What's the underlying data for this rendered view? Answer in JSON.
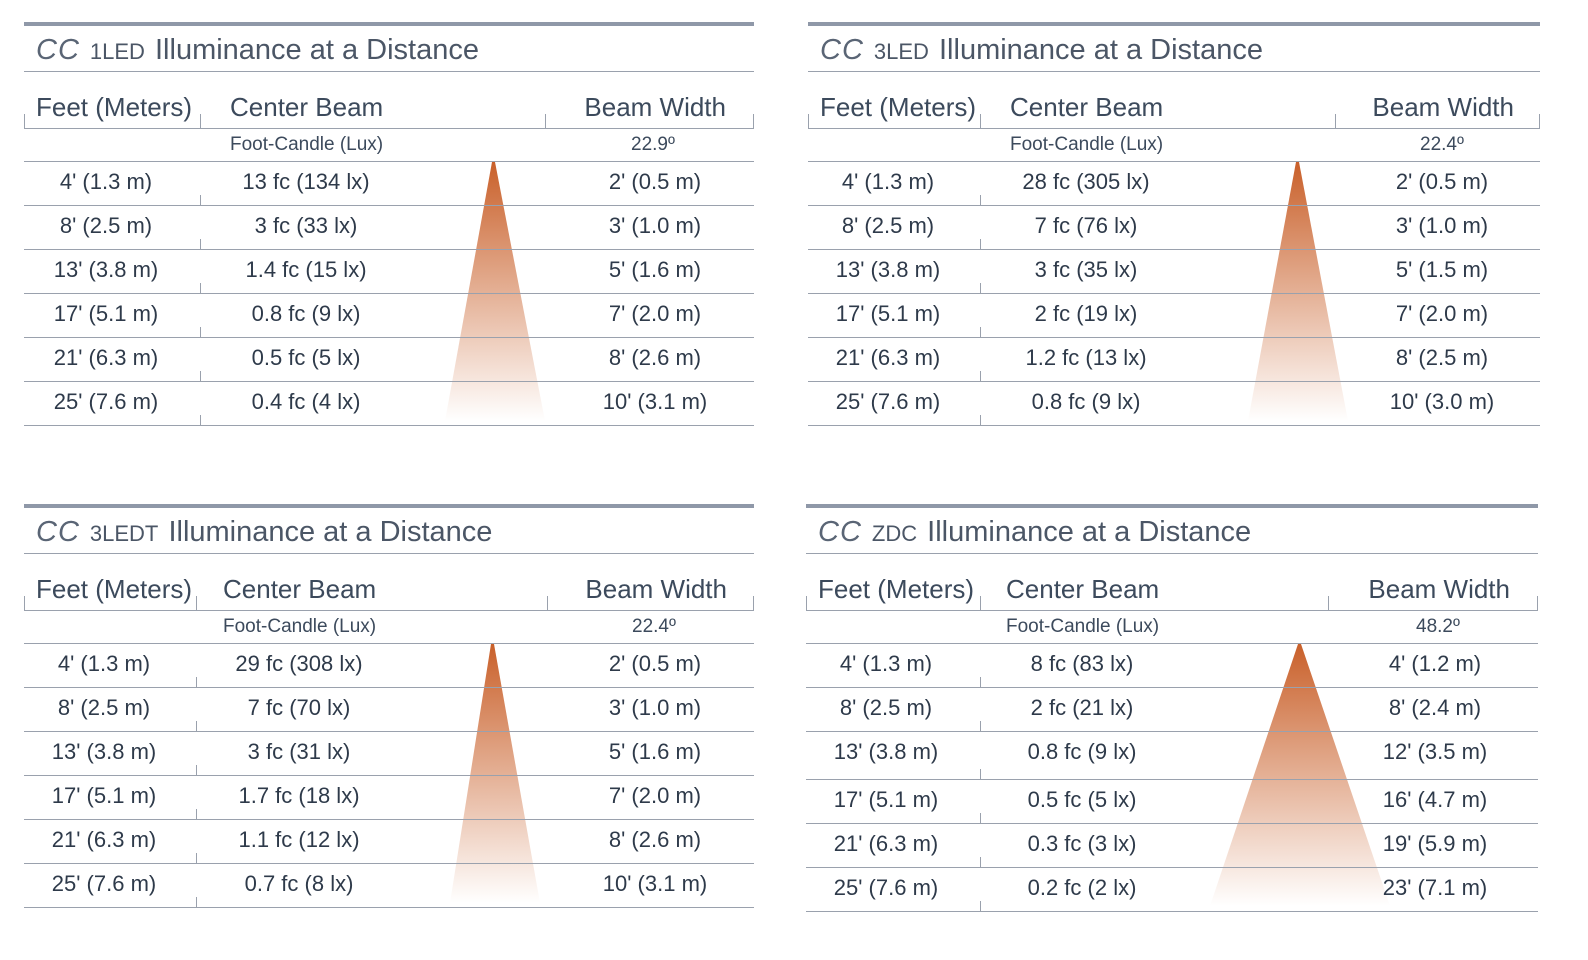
{
  "accent_color": "#cc6a2c",
  "panels": [
    {
      "brand": "CC",
      "model": "1LED",
      "title_rest": "Illuminance at a Distance",
      "col_feet": "Feet (Meters)",
      "col_center": "Center Beam",
      "col_width": "Beam Width",
      "units": "Foot-Candle (Lux)",
      "angle": "22.9º",
      "rows": [
        {
          "distance": "4' (1.3 m)",
          "center": "13 fc (134 lx)",
          "width": "2' (0.5 m)"
        },
        {
          "distance": "8' (2.5 m)",
          "center": "3 fc (33 lx)",
          "width": "3' (1.0 m)"
        },
        {
          "distance": "13' (3.8 m)",
          "center": "1.4 fc (15 lx)",
          "width": "5' (1.6 m)"
        },
        {
          "distance": "17' (5.1 m)",
          "center": "0.8 fc (9 lx)",
          "width": "7' (2.0 m)"
        },
        {
          "distance": "21' (6.3 m)",
          "center": "0.5 fc (5 lx)",
          "width": "8' (2.6 m)"
        },
        {
          "distance": "25' (7.6 m)",
          "center": "0.4 fc (4 lx)",
          "width": "10' (3.1 m)"
        }
      ]
    },
    {
      "brand": "CC",
      "model": "3LED",
      "title_rest": "Illuminance at a Distance",
      "col_feet": "Feet (Meters)",
      "col_center": "Center Beam",
      "col_width": "Beam Width",
      "units": "Foot-Candle (Lux)",
      "angle": "22.4º",
      "rows": [
        {
          "distance": "4' (1.3 m)",
          "center": "28 fc (305 lx)",
          "width": "2' (0.5 m)"
        },
        {
          "distance": "8' (2.5 m)",
          "center": "7 fc (76 lx)",
          "width": "3' (1.0 m)"
        },
        {
          "distance": "13' (3.8 m)",
          "center": "3 fc (35 lx)",
          "width": "5' (1.5 m)"
        },
        {
          "distance": "17' (5.1 m)",
          "center": "2 fc (19 lx)",
          "width": "7' (2.0 m)"
        },
        {
          "distance": "21' (6.3 m)",
          "center": "1.2 fc (13 lx)",
          "width": "8' (2.5 m)"
        },
        {
          "distance": "25' (7.6 m)",
          "center": "0.8 fc (9 lx)",
          "width": "10' (3.0 m)"
        }
      ]
    },
    {
      "brand": "CC",
      "model": "3LEDT",
      "title_rest": "Illuminance at a Distance",
      "col_feet": "Feet (Meters)",
      "col_center": "Center Beam",
      "col_width": "Beam Width",
      "units": "Foot-Candle (Lux)",
      "angle": "22.4º",
      "rows": [
        {
          "distance": "4' (1.3 m)",
          "center": "29 fc (308 lx)",
          "width": "2' (0.5 m)"
        },
        {
          "distance": "8' (2.5 m)",
          "center": "7 fc (70 lx)",
          "width": "3' (1.0 m)"
        },
        {
          "distance": "13' (3.8 m)",
          "center": "3 fc (31 lx)",
          "width": "5' (1.6 m)"
        },
        {
          "distance": "17' (5.1 m)",
          "center": "1.7 fc (18 lx)",
          "width": "7' (2.0 m)"
        },
        {
          "distance": "21' (6.3 m)",
          "center": "1.1 fc (12 lx)",
          "width": "8' (2.6 m)"
        },
        {
          "distance": "25' (7.6 m)",
          "center": "0.7 fc (8 lx)",
          "width": "10' (3.1 m)"
        }
      ]
    },
    {
      "brand": "CC",
      "model": "ZDC",
      "title_rest": "Illuminance at a Distance",
      "col_feet": "Feet (Meters)",
      "col_center": "Center Beam",
      "col_width": "Beam Width",
      "units": "Foot-Candle (Lux)",
      "angle": "48.2º",
      "rows": [
        {
          "distance": "4' (1.3 m)",
          "center": "8 fc (83 lx)",
          "width": "4' (1.2 m)"
        },
        {
          "distance": "8' (2.5 m)",
          "center": "2 fc (21 lx)",
          "width": "8' (2.4 m)"
        },
        {
          "distance": "13' (3.8 m)",
          "center": "0.8 fc (9 lx)",
          "width": "12' (3.5 m)"
        },
        {
          "distance": "17' (5.1 m)",
          "center": "0.5 fc (5 lx)",
          "width": "16' (4.7 m)"
        },
        {
          "distance": "21' (6.3 m)",
          "center": "0.3 fc (3 lx)",
          "width": "19' (5.9 m)"
        },
        {
          "distance": "25' (7.6 m)",
          "center": "0.2 fc (2 lx)",
          "width": "23' (7.1 m)"
        }
      ]
    }
  ]
}
